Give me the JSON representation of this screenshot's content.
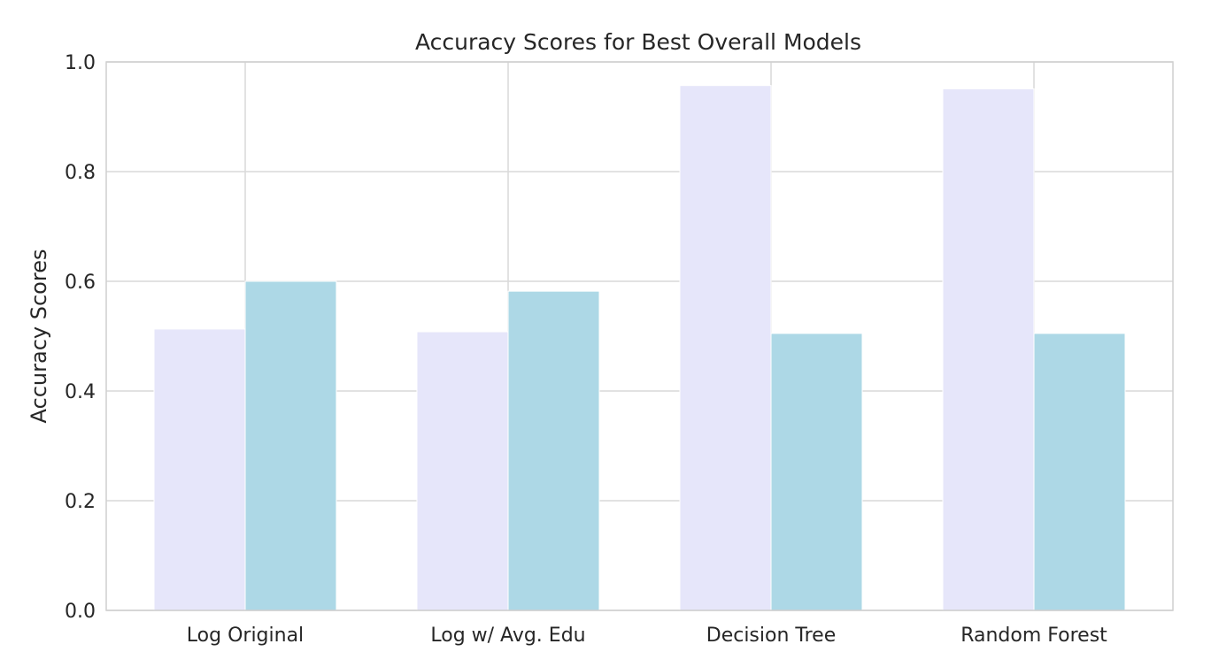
{
  "chart_data": {
    "type": "bar",
    "title": "Accuracy Scores for Best Overall Models",
    "xlabel": "",
    "ylabel": "Accuracy Scores",
    "categories": [
      "Log Original",
      "Log w/ Avg. Edu",
      "Decision Tree",
      "Random Forest"
    ],
    "series": [
      {
        "values": [
          0.513,
          0.508,
          0.957,
          0.951
        ]
      },
      {
        "values": [
          0.6,
          0.582,
          0.505,
          0.505
        ]
      }
    ],
    "ylim": [
      0,
      1.0
    ],
    "yticks": [
      "0.0",
      "0.2",
      "0.4",
      "0.6",
      "0.8",
      "1.0"
    ],
    "grid": true,
    "colors": [
      "#e6e6fa",
      "#add8e6"
    ],
    "legend": "none"
  }
}
